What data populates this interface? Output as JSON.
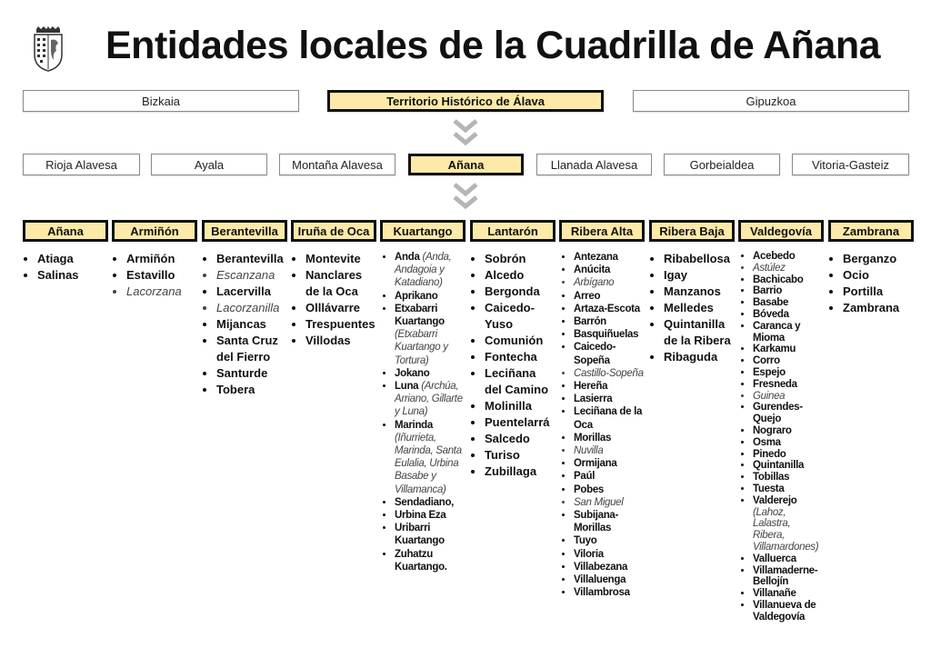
{
  "title": "Entidades locales de la Cuadrilla de Añana",
  "colors": {
    "highlight": "#fdeaa8",
    "border": "#111111",
    "arrow": "#b5b5b5"
  },
  "provinces": [
    {
      "label": "Bizkaia",
      "active": false
    },
    {
      "label": "Territorio Histórico de Álava",
      "active": true
    },
    {
      "label": "Gipuzkoa",
      "active": false
    }
  ],
  "cuadrillas": [
    {
      "label": "Rioja Alavesa",
      "active": false
    },
    {
      "label": "Ayala",
      "active": false
    },
    {
      "label": "Montaña Alavesa",
      "active": false
    },
    {
      "label": "Añana",
      "active": true
    },
    {
      "label": "Llanada Alavesa",
      "active": false
    },
    {
      "label": "Gorbeialdea",
      "active": false
    },
    {
      "label": "Vitoria-Gasteiz",
      "active": false
    }
  ],
  "arrow_icon": "double-chevron-down",
  "municipalities": [
    {
      "name": "Añana",
      "entities": [
        {
          "name": "Atiaga"
        },
        {
          "name": "Salinas"
        }
      ]
    },
    {
      "name": "Armiñón",
      "entities": [
        {
          "name": "Armiñón"
        },
        {
          "name": "Estavillo"
        },
        {
          "name": "Lacorzana",
          "italic": true
        }
      ]
    },
    {
      "name": "Berantevilla",
      "entities": [
        {
          "name": "Berantevilla"
        },
        {
          "name": "Escanzana",
          "italic": true
        },
        {
          "name": "Lacervilla"
        },
        {
          "name": "Lacorzanilla",
          "italic": true
        },
        {
          "name": "Mijancas"
        },
        {
          "name": "Santa Cruz del Fierro"
        },
        {
          "name": "Santurde"
        },
        {
          "name": "Tobera"
        }
      ]
    },
    {
      "name": "Iruña de Oca",
      "entities": [
        {
          "name": "Montevite"
        },
        {
          "name": "Nanclares de la Oca"
        },
        {
          "name": "Olllávarre"
        },
        {
          "name": "Trespuentes"
        },
        {
          "name": "Villodas"
        }
      ]
    },
    {
      "name": "Kuartango",
      "entities": [
        {
          "name": "Anda",
          "note": "(Anda, Andagoia y Katadiano)"
        },
        {
          "name": "Aprikano"
        },
        {
          "name": "Etxabarri Kuartango",
          "note": "(Etxabarri Kuartango y Tortura)"
        },
        {
          "name": "Jokano"
        },
        {
          "name": "Luna",
          "note": "(Archúa, Arriano, Gillarte y Luna)"
        },
        {
          "name": "Marinda",
          "note": "(Iñurrieta, Marinda, Santa Eulalia, Urbina Basabe y Villamanca)"
        },
        {
          "name": "Sendadiano,"
        },
        {
          "name": "Urbina Eza"
        },
        {
          "name": "Uribarri Kuartango"
        },
        {
          "name": "Zuhatzu Kuartango."
        }
      ]
    },
    {
      "name": "Lantarón",
      "entities": [
        {
          "name": "Sobrón"
        },
        {
          "name": "Alcedo"
        },
        {
          "name": "Bergonda"
        },
        {
          "name": "Caicedo-Yuso"
        },
        {
          "name": "Comunión"
        },
        {
          "name": "Fontecha"
        },
        {
          "name": "Leciñana del Camino"
        },
        {
          "name": "Molinilla"
        },
        {
          "name": "Puentelarrá"
        },
        {
          "name": "Salcedo"
        },
        {
          "name": "Turiso"
        },
        {
          "name": "Zubillaga"
        }
      ]
    },
    {
      "name": "Ribera Alta",
      "entities": [
        {
          "name": "Antezana"
        },
        {
          "name": "Anúcita"
        },
        {
          "name": "Arbígano",
          "italic": true
        },
        {
          "name": "Arreo"
        },
        {
          "name": "Artaza-Escota"
        },
        {
          "name": "Barrón"
        },
        {
          "name": "Basquiñuelas"
        },
        {
          "name": "Caicedo-Sopeña"
        },
        {
          "name": "Castillo-Sopeña",
          "italic": true
        },
        {
          "name": "Hereña"
        },
        {
          "name": "Lasierra"
        },
        {
          "name": "Leciñana de la Oca"
        },
        {
          "name": "Morillas"
        },
        {
          "name": "Nuvilla",
          "italic": true
        },
        {
          "name": "Ormijana"
        },
        {
          "name": "Paúl"
        },
        {
          "name": "Pobes"
        },
        {
          "name": "San Miguel",
          "italic": true
        },
        {
          "name": "Subijana-Morillas"
        },
        {
          "name": "Tuyo"
        },
        {
          "name": "Viloria"
        },
        {
          "name": "Villabezana"
        },
        {
          "name": "Villaluenga"
        },
        {
          "name": "Villambrosa"
        }
      ]
    },
    {
      "name": "Ribera Baja",
      "entities": [
        {
          "name": "Ribabellosa"
        },
        {
          "name": "Igay"
        },
        {
          "name": "Manzanos"
        },
        {
          "name": "Melledes"
        },
        {
          "name": "Quintanilla de la Ribera"
        },
        {
          "name": "Ribaguda"
        }
      ]
    },
    {
      "name": "Valdegovía",
      "entities": [
        {
          "name": "Acebedo"
        },
        {
          "name": "Astúlez",
          "italic": true
        },
        {
          "name": "Bachicabo"
        },
        {
          "name": "Barrio"
        },
        {
          "name": "Basabe"
        },
        {
          "name": "Bóveda"
        },
        {
          "name": "Caranca y Mioma"
        },
        {
          "name": "Karkamu"
        },
        {
          "name": "Corro"
        },
        {
          "name": "Espejo"
        },
        {
          "name": "Fresneda"
        },
        {
          "name": "Guinea",
          "italic": true
        },
        {
          "name": "Gurendes-Quejo"
        },
        {
          "name": "Nograro"
        },
        {
          "name": "Osma"
        },
        {
          "name": "Pinedo"
        },
        {
          "name": "Quintanilla"
        },
        {
          "name": "Tobillas"
        },
        {
          "name": "Tuesta"
        },
        {
          "name": "Valderejo",
          "note": "(Lahoz, Lalastra, Ribera, Villamardones)"
        },
        {
          "name": "Valluerca"
        },
        {
          "name": "Villamaderne-Bellojín"
        },
        {
          "name": "Villanañe"
        },
        {
          "name": "Villanueva de Valdegovía"
        }
      ]
    },
    {
      "name": "Zambrana",
      "entities": [
        {
          "name": "Berganzo"
        },
        {
          "name": "Ocio"
        },
        {
          "name": "Portilla"
        },
        {
          "name": "Zambrana"
        }
      ]
    }
  ]
}
